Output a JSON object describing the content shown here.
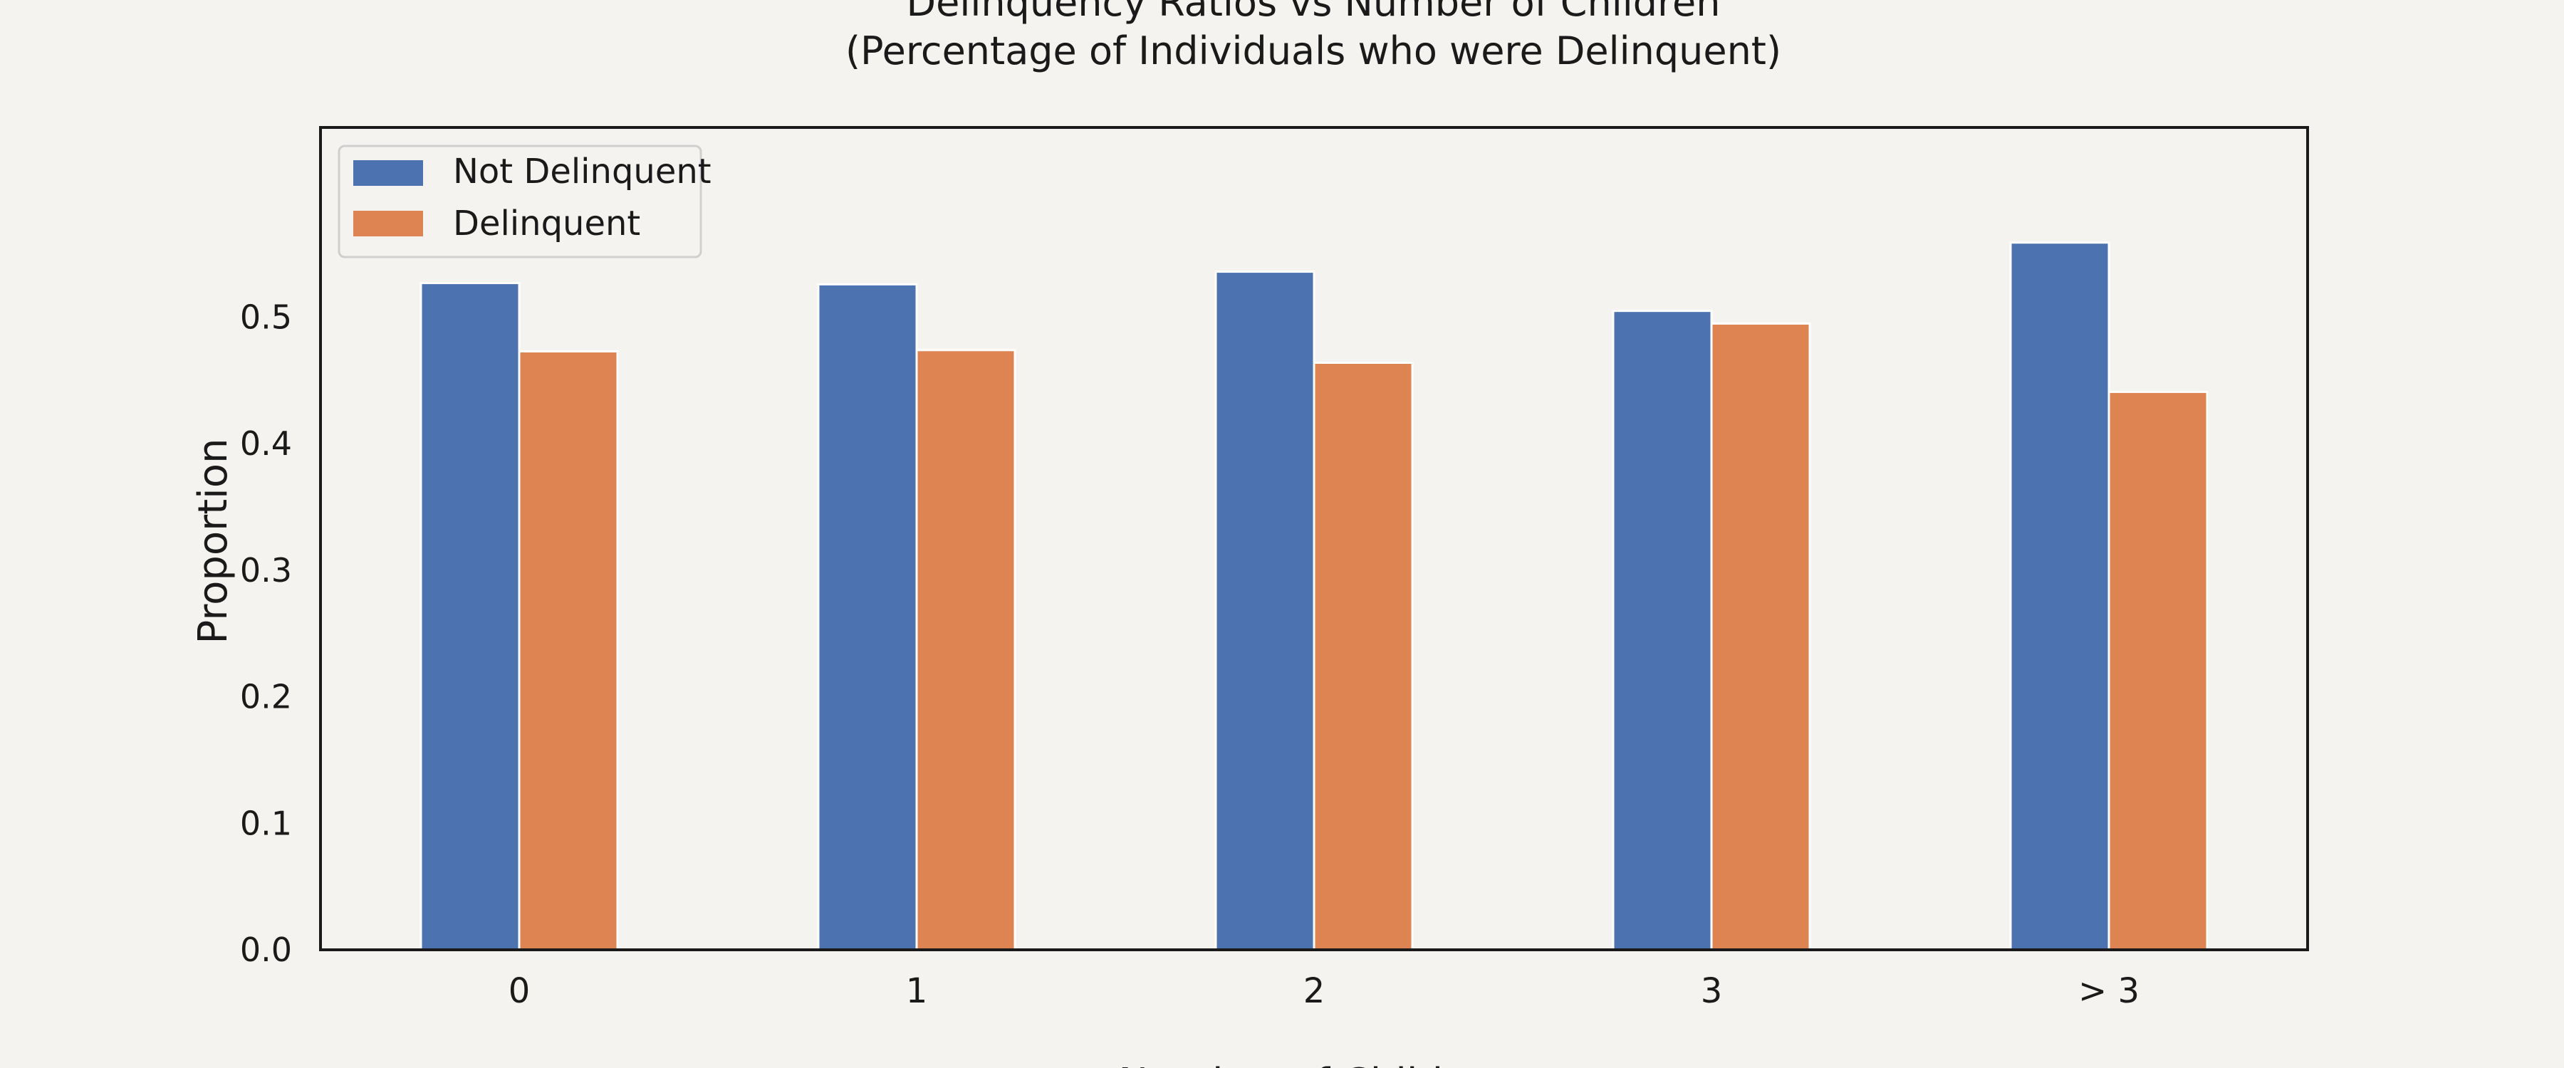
{
  "chart_data": {
    "type": "bar",
    "title": "Delinquency Ratios vs Number of Children",
    "subtitle": "(Percentage of Individuals who were Delinquent)",
    "xlabel": "Number of Children",
    "ylabel": "Proportion",
    "categories": [
      "0",
      "1",
      "2",
      "3",
      "> 3"
    ],
    "series": [
      {
        "name": "Not Delinquent",
        "color": "#4c72b0",
        "values": [
          0.527,
          0.526,
          0.536,
          0.505,
          0.559
        ]
      },
      {
        "name": "Delinquent",
        "color": "#dd8452",
        "values": [
          0.473,
          0.474,
          0.464,
          0.495,
          0.441
        ]
      }
    ],
    "yticks": [
      "0.0",
      "0.1",
      "0.2",
      "0.3",
      "0.4",
      "0.5"
    ],
    "ylim": [
      0,
      0.65
    ],
    "grid": false,
    "legend": "top-left"
  }
}
